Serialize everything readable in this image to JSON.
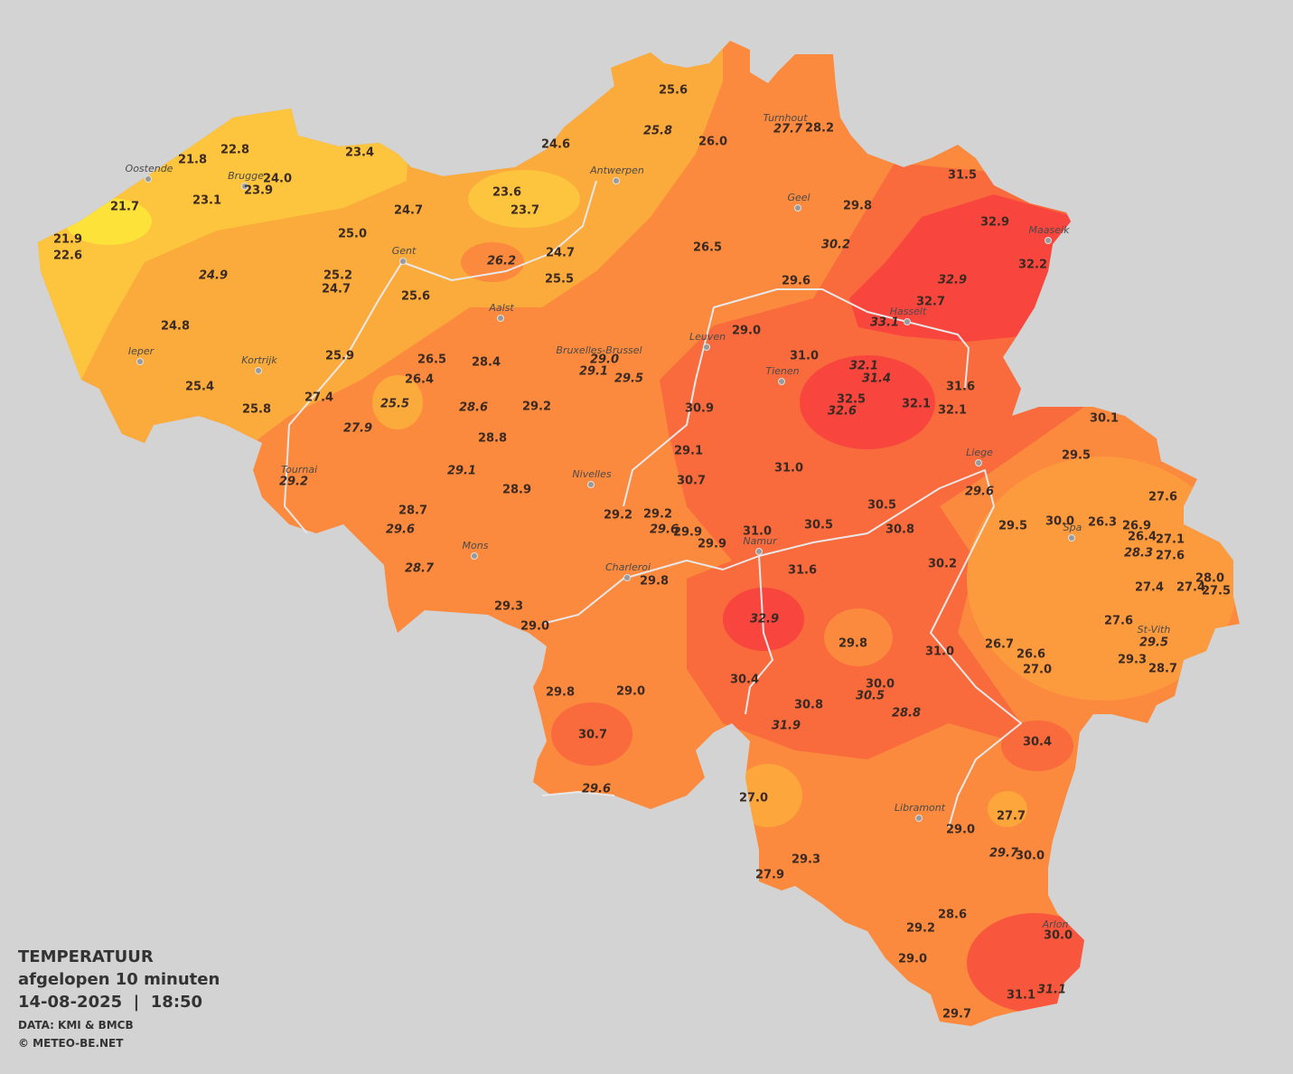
{
  "legend": {
    "title": "TEMPERATUUR",
    "subtitle": "afgelopen 10 minuten",
    "timestamp": "14-08-2025  |  18:50",
    "source": "DATA: KMI & BMCB",
    "copyright": "© METEO-BE.NET"
  },
  "cities": [
    "Oostende",
    "Brugge",
    "Antwerpen",
    "Turnhout",
    "Geel",
    "Maaseik",
    "Gent",
    "Aalst",
    "Hasselt",
    "Leuven",
    "Ieper",
    "Kortrijk",
    "Bruxelles-Brussel",
    "Tienen",
    "Liege",
    "Tournai",
    "Nivelles",
    "Spa",
    "Mons",
    "Namur",
    "Charleroi",
    "St-Vith",
    "Libramont",
    "Arlon"
  ],
  "readings": [
    "25.6",
    "25.8",
    "26.0",
    "24.6",
    "27.7",
    "28.2",
    "22.8",
    "21.8",
    "23.4",
    "24.0",
    "23.9",
    "23.1",
    "21.7",
    "23.6",
    "23.7",
    "24.7",
    "31.5",
    "29.8",
    "32.9",
    "21.9",
    "22.6",
    "25.0",
    "24.7",
    "26.5",
    "30.2",
    "32.2",
    "26.2",
    "24.9",
    "25.2",
    "24.7",
    "25.5",
    "29.6",
    "32.9",
    "25.6",
    "32.7",
    "33.1",
    "24.8",
    "29.0",
    "25.9",
    "26.5",
    "28.4",
    "29.0",
    "31.0",
    "29.1",
    "29.5",
    "32.1",
    "31.4",
    "26.4",
    "25.4",
    "31.6",
    "27.4",
    "32.5",
    "25.5",
    "28.6",
    "29.2",
    "30.9",
    "32.6",
    "32.1",
    "32.1",
    "30.1",
    "25.8",
    "27.9",
    "28.8",
    "29.1",
    "29.5",
    "29.1",
    "31.0",
    "29.2",
    "30.7",
    "28.9",
    "29.6",
    "27.6",
    "30.5",
    "28.7",
    "29.2",
    "29.2",
    "29.5",
    "30.0",
    "26.3",
    "26.9",
    "30.5",
    "29.6",
    "29.9",
    "31.0",
    "30.8",
    "29.6",
    "26.4",
    "27.1",
    "29.9",
    "28.3",
    "27.6",
    "28.7",
    "31.6",
    "30.2",
    "28.0",
    "29.8",
    "27.4",
    "27.4",
    "27.5",
    "29.3",
    "29.0",
    "32.9",
    "27.6",
    "29.5",
    "29.8",
    "26.7",
    "31.0",
    "26.6",
    "29.3",
    "28.7",
    "27.0",
    "30.4",
    "30.0",
    "30.5",
    "29.8",
    "29.0",
    "30.8",
    "28.8",
    "31.9",
    "30.7",
    "30.4",
    "29.6",
    "27.0",
    "27.7",
    "29.0",
    "29.7",
    "30.0",
    "29.3",
    "27.9",
    "28.6",
    "29.2",
    "30.0",
    "29.0",
    "31.1",
    "31.1",
    "29.7"
  ]
}
